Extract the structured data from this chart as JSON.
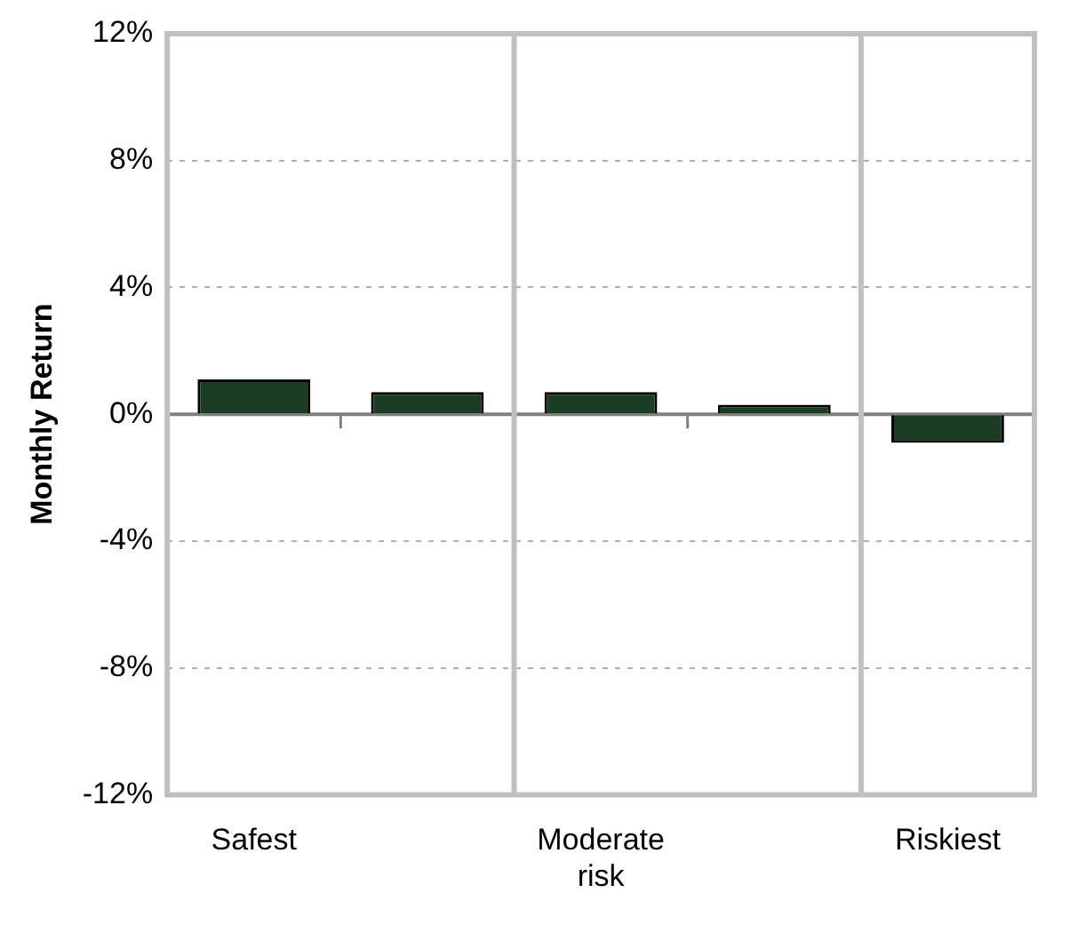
{
  "chart_data": {
    "type": "bar",
    "ylabel": "Monthly Return",
    "categories": [
      "Safest",
      null,
      "Moderate risk",
      null,
      "Riskiest"
    ],
    "values": [
      1.1,
      0.7,
      0.7,
      0.3,
      -0.9
    ],
    "color": "#1a3d23",
    "ylim": [
      -12,
      12
    ],
    "yticks": [
      {
        "value": -12,
        "label": "-12%"
      },
      {
        "value": -8,
        "label": "-8%"
      },
      {
        "value": -4,
        "label": "-4%"
      },
      {
        "value": 0,
        "label": "0%"
      },
      {
        "value": 4,
        "label": "4%"
      },
      {
        "value": 8,
        "label": "8%"
      },
      {
        "value": 12,
        "label": "12%"
      }
    ],
    "grid": "y",
    "legend": false
  }
}
